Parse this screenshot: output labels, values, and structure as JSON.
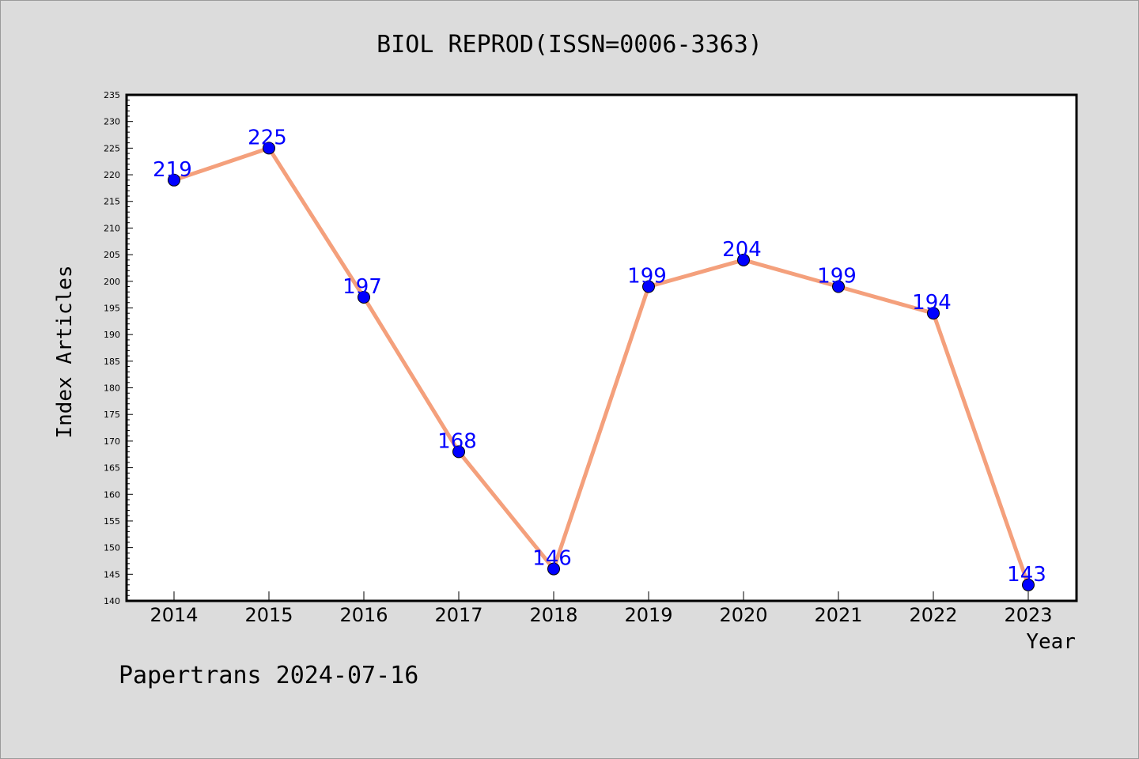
{
  "chart_data": {
    "type": "line",
    "title": "BIOL REPROD(ISSN=0006-3363)",
    "xlabel": "Year",
    "ylabel": "Index Articles",
    "categories": [
      "2014",
      "2015",
      "2016",
      "2017",
      "2018",
      "2019",
      "2020",
      "2021",
      "2022",
      "2023"
    ],
    "series": [
      {
        "values": [
          219,
          225,
          197,
          168,
          146,
          199,
          204,
          199,
          194,
          143
        ]
      }
    ],
    "ylim": [
      140,
      235
    ],
    "ytick_step": 5,
    "grid": false,
    "line_color": "#f4a07c",
    "marker_color": "#0000ff",
    "label_color": "#0000ff"
  },
  "footer": "Papertrans 2024-07-16"
}
